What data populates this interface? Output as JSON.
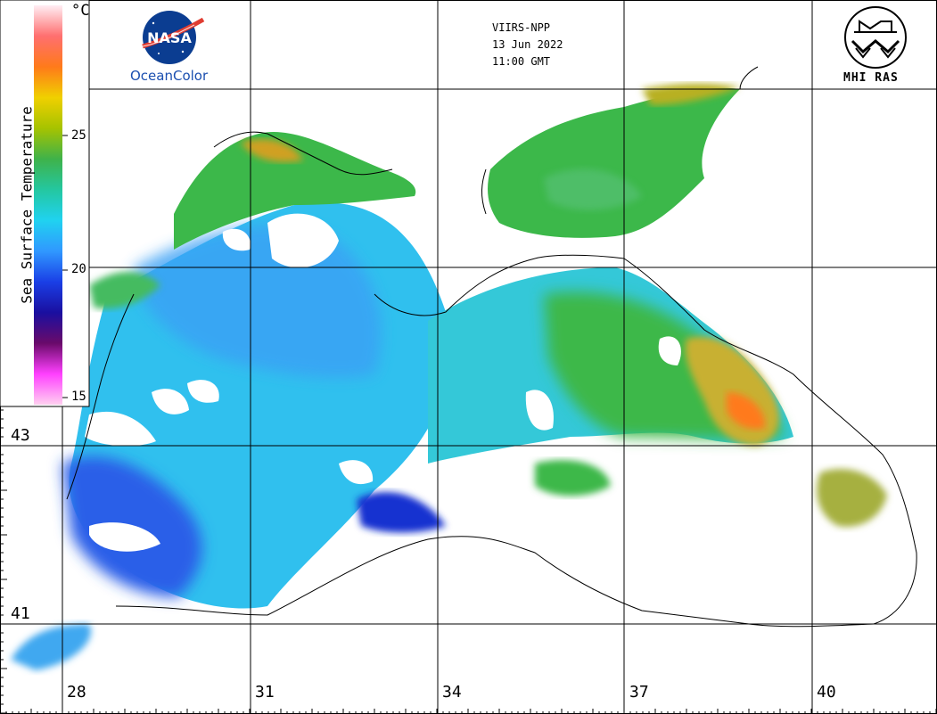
{
  "header": {
    "sensor": "VIIRS-NPP",
    "date": "13 Jun 2022",
    "time": "11:00 GMT"
  },
  "logos": {
    "nasa_badge": "NASA",
    "nasa_caption": "OceanColor",
    "mhi_caption": "MHI RAS"
  },
  "colorbar": {
    "title": "Sea Surface Temperature",
    "unit": "°C",
    "ticks": [
      "25",
      "20",
      "15"
    ],
    "colors": [
      "#ffeef4",
      "#ff6f6f",
      "#ff7a1a",
      "#f0d000",
      "#a6c300",
      "#3fb24a",
      "#24c7a0",
      "#20d2f0",
      "#3098ff",
      "#1a3fe6",
      "#1a0fa0",
      "#6a0a6a",
      "#ff40ff",
      "#ffd0f0"
    ]
  },
  "map": {
    "latitude_labels": [
      "43",
      "41"
    ],
    "longitude_labels": [
      "28",
      "31",
      "34",
      "37",
      "40"
    ],
    "grid_color": "#000000",
    "land_color": "#ffffff"
  }
}
